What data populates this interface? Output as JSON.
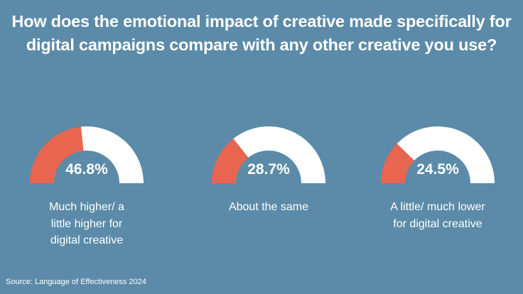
{
  "title_lines": [
    "How does the emotional impact of creative made specifically for",
    "digital campaigns compare with any other creative you use?"
  ],
  "colors": {
    "background": "#5b8ba8",
    "filled": "#e8664f",
    "remainder": "#ffffff",
    "text": "#ffffff"
  },
  "chart_data": {
    "type": "gauge",
    "title": "How does the emotional impact of creative made specifically for digital campaigns compare with any other creative you use?",
    "unit": "%",
    "ylim": [
      0,
      100
    ],
    "items": [
      {
        "label": "Much higher/ a little higher for digital creative",
        "label_lines": [
          "Much higher/ a",
          "little higher for",
          "digital creative"
        ],
        "value": 46.8,
        "display": "46.8%"
      },
      {
        "label": "About the same",
        "label_lines": [
          "About the same"
        ],
        "value": 28.7,
        "display": "28.7%"
      },
      {
        "label": "A little/ much lower for digital creative",
        "label_lines": [
          "A little/ much lower",
          "for digital creative"
        ],
        "value": 24.5,
        "display": "24.5%"
      }
    ]
  },
  "source": "Source: Language of Effectiveness 2024"
}
